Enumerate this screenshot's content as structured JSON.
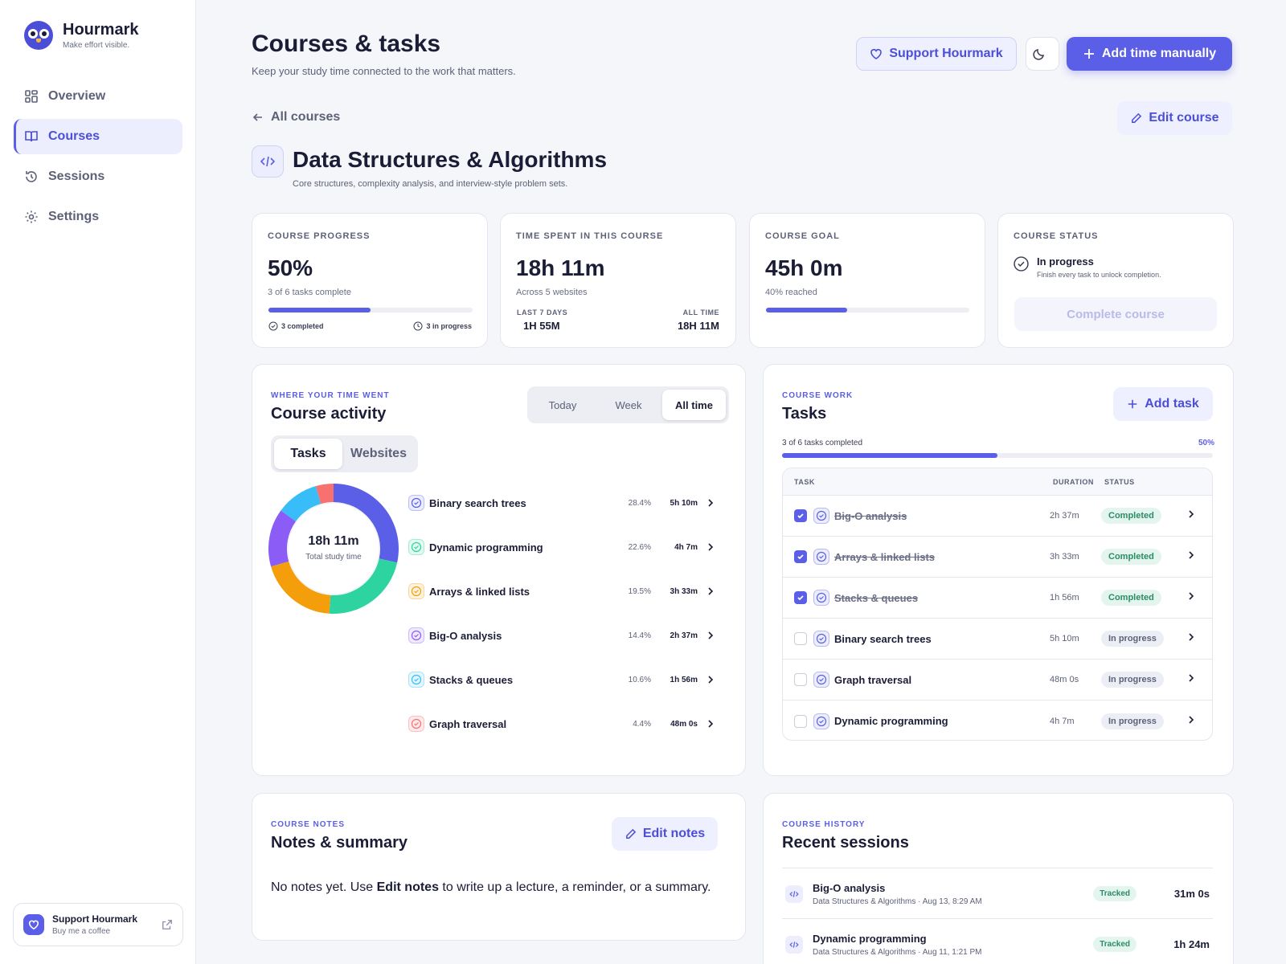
{
  "brand": {
    "name": "Hourmark",
    "tagline": "Make effort visible."
  },
  "nav": {
    "items": [
      {
        "label": "Overview",
        "icon": "grid-icon"
      },
      {
        "label": "Courses",
        "icon": "book-icon"
      },
      {
        "label": "Sessions",
        "icon": "history-icon"
      },
      {
        "label": "Settings",
        "icon": "gear-icon"
      }
    ],
    "active": "Courses"
  },
  "support_card": {
    "title": "Support Hourmark",
    "subtitle": "Buy me a coffee"
  },
  "header": {
    "title": "Courses & tasks",
    "subtitle": "Keep your study time connected to the work that matters.",
    "support_label": "Support Hourmark",
    "add_time_label": "Add time manually"
  },
  "course": {
    "back_label": "All courses",
    "edit_label": "Edit course",
    "title": "Data Structures & Algorithms",
    "description": "Core structures, complexity analysis, and interview-style problem sets."
  },
  "stats": {
    "progress": {
      "label": "COURSE PROGRESS",
      "value": "50%",
      "note": "3 of 6 tasks complete",
      "fraction": 0.5,
      "completed": "3 completed",
      "in_progress": "3 in progress"
    },
    "time": {
      "label": "TIME SPENT IN THIS COURSE",
      "value": "18h 11m",
      "note": "Across 5 websites",
      "last7_label": "LAST 7 DAYS",
      "last7_value": "1H 55M",
      "all_label": "ALL TIME",
      "all_value": "18H 11M"
    },
    "goal": {
      "label": "COURSE GOAL",
      "value": "45h 0m",
      "note": "40% reached",
      "fraction": 0.4
    },
    "status": {
      "label": "COURSE STATUS",
      "title": "In progress",
      "note": "Finish every task to unlock completion.",
      "button": "Complete course"
    }
  },
  "activity": {
    "eyebrow": "WHERE YOUR TIME WENT",
    "title": "Course activity",
    "ranges": [
      "Today",
      "Week",
      "All time"
    ],
    "range_selected": "All time",
    "modes": [
      "Tasks",
      "Websites"
    ],
    "mode_selected": "Tasks",
    "total": "18h 11m",
    "total_label": "Total study time",
    "items": [
      {
        "name": "Binary search trees",
        "pct": "28.4%",
        "dur": "5h 10m",
        "share": 28.4,
        "color": "#5b5ee6",
        "tint": "#eceefe"
      },
      {
        "name": "Dynamic programming",
        "pct": "22.6%",
        "dur": "4h 7m",
        "share": 22.6,
        "color": "#2dd4a0",
        "tint": "#e3f8f1"
      },
      {
        "name": "Arrays & linked lists",
        "pct": "19.5%",
        "dur": "3h 33m",
        "share": 19.5,
        "color": "#f59e0b",
        "tint": "#fef3df"
      },
      {
        "name": "Big-O analysis",
        "pct": "14.4%",
        "dur": "2h 37m",
        "share": 14.4,
        "color": "#8b5cf6",
        "tint": "#f0eafe"
      },
      {
        "name": "Stacks & queues",
        "pct": "10.6%",
        "dur": "1h 56m",
        "share": 10.6,
        "color": "#38bdf8",
        "tint": "#e4f6fe"
      },
      {
        "name": "Graph traversal",
        "pct": "4.4%",
        "dur": "48m 0s",
        "share": 4.4,
        "color": "#f87171",
        "tint": "#feeaea"
      }
    ]
  },
  "tasks": {
    "eyebrow": "COURSE WORK",
    "title": "Tasks",
    "add_label": "Add task",
    "progress_label": "3 of 6 tasks completed",
    "progress_pct": "50%",
    "fraction": 0.5,
    "columns": {
      "task": "TASK",
      "duration": "DURATION",
      "status": "STATUS"
    },
    "rows": [
      {
        "name": "Big-O analysis",
        "duration": "2h 37m",
        "status": "Completed",
        "done": true
      },
      {
        "name": "Arrays & linked lists",
        "duration": "3h 33m",
        "status": "Completed",
        "done": true
      },
      {
        "name": "Stacks & queues",
        "duration": "1h 56m",
        "status": "Completed",
        "done": true
      },
      {
        "name": "Binary search trees",
        "duration": "5h 10m",
        "status": "In progress",
        "done": false
      },
      {
        "name": "Graph traversal",
        "duration": "48m 0s",
        "status": "In progress",
        "done": false
      },
      {
        "name": "Dynamic programming",
        "duration": "4h 7m",
        "status": "In progress",
        "done": false
      }
    ]
  },
  "notes": {
    "eyebrow": "COURSE NOTES",
    "title": "Notes & summary",
    "edit_label": "Edit notes",
    "body_pre": "No notes yet. Use ",
    "body_bold": "Edit notes",
    "body_post": " to write up a lecture, a reminder, or a summary."
  },
  "history": {
    "eyebrow": "COURSE HISTORY",
    "title": "Recent sessions",
    "rows": [
      {
        "name": "Big-O analysis",
        "meta": "Data Structures & Algorithms · Aug 13, 8:29 AM",
        "badge": "Tracked",
        "duration": "31m 0s"
      },
      {
        "name": "Dynamic programming",
        "meta": "Data Structures & Algorithms · Aug 11, 1:21 PM",
        "badge": "Tracked",
        "duration": "1h 24m"
      }
    ]
  }
}
